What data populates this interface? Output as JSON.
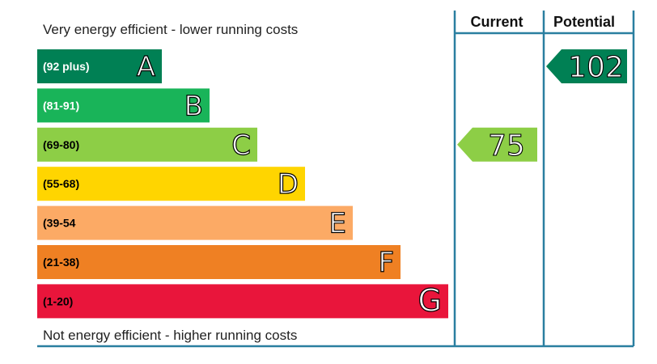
{
  "chart_data": {
    "type": "bar",
    "top_caption": "Very energy efficient - lower running costs",
    "bottom_caption": "Not energy efficient - higher running costs",
    "categories": [
      "A",
      "B",
      "C",
      "D",
      "E",
      "F",
      "G"
    ],
    "bands": [
      {
        "letter": "A",
        "range": "(92 plus)",
        "min": 92,
        "max": 100,
        "color": "#008054",
        "range_text_color": "#ffffff"
      },
      {
        "letter": "B",
        "range": "(81-91)",
        "min": 81,
        "max": 91,
        "color": "#19b459",
        "range_text_color": "#ffffff"
      },
      {
        "letter": "C",
        "range": "(69-80)",
        "min": 69,
        "max": 80,
        "color": "#8dce46",
        "range_text_color": "#000000"
      },
      {
        "letter": "D",
        "range": "(55-68)",
        "min": 55,
        "max": 68,
        "color": "#ffd500",
        "range_text_color": "#000000"
      },
      {
        "letter": "E",
        "range": "(39-54",
        "min": 39,
        "max": 54,
        "color": "#fcaa65",
        "range_text_color": "#000000"
      },
      {
        "letter": "F",
        "range": "(21-38)",
        "min": 21,
        "max": 38,
        "color": "#ef8023",
        "range_text_color": "#000000"
      },
      {
        "letter": "G",
        "range": "(1-20)",
        "min": 1,
        "max": 20,
        "color": "#e9153b",
        "range_text_color": "#000000"
      }
    ],
    "columns": {
      "current": "Current",
      "potential": "Potential"
    },
    "current": {
      "value": 75,
      "band": "C",
      "color": "#8dce46"
    },
    "potential": {
      "value": 102,
      "band": "A",
      "color": "#008054"
    },
    "grid_color": "#2a7fa0"
  }
}
